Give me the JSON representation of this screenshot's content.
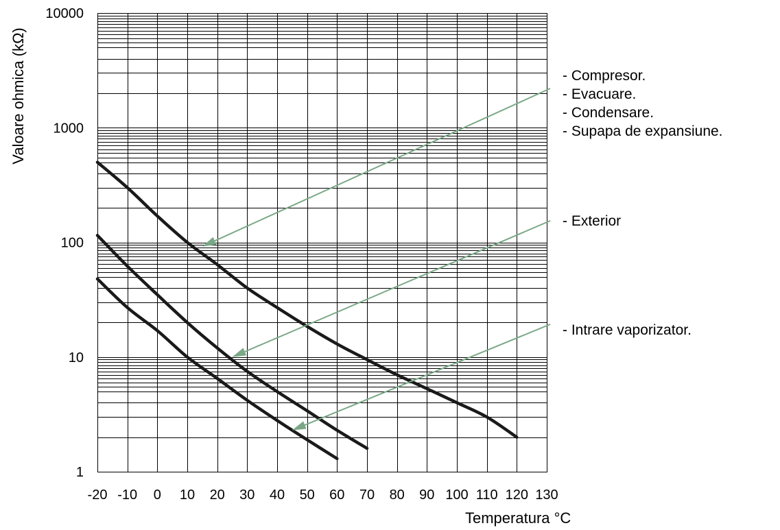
{
  "chart_data": {
    "type": "line",
    "xlabel": "Temperatura °C",
    "ylabel": "Valoare ohmica (kΩ)",
    "xlim": [
      -20,
      130
    ],
    "ylim": [
      1,
      10000
    ],
    "y_scale": "log",
    "grid": true,
    "x_ticks": [
      "-20",
      "-10",
      "0",
      "10",
      "20",
      "30",
      "40",
      "50",
      "60",
      "70",
      "80",
      "90",
      "100",
      "110",
      "120",
      "130"
    ],
    "y_ticks": [
      "1",
      "10",
      "100",
      "1000",
      "10000"
    ],
    "series": [
      {
        "key": "s1",
        "x": [
          -20,
          -10,
          0,
          10,
          20,
          30,
          40,
          50,
          60,
          70,
          80,
          90,
          100,
          110,
          120
        ],
        "y": [
          500,
          300,
          170,
          100,
          64,
          40,
          27,
          18.5,
          13,
          9.5,
          7,
          5.3,
          4,
          3,
          2
        ]
      },
      {
        "key": "s2",
        "x": [
          -20,
          -10,
          0,
          10,
          20,
          30,
          40,
          50,
          60,
          70
        ],
        "y": [
          115,
          62,
          35,
          20,
          12,
          7.5,
          5,
          3.4,
          2.3,
          1.6
        ]
      },
      {
        "key": "s3",
        "x": [
          -20,
          -10,
          0,
          10,
          20,
          30,
          40,
          50,
          60
        ],
        "y": [
          48,
          27,
          17,
          10,
          6.5,
          4.2,
          2.8,
          1.9,
          1.3
        ]
      }
    ],
    "annotations": [
      {
        "series": "s1",
        "lines": [
          "- Compresor.",
          "- Evacuare.",
          "- Condensare.",
          "- Supapa de expansiune."
        ],
        "arrow_to": [
          15,
          92
        ]
      },
      {
        "series": "s2",
        "lines": [
          "- Exterior"
        ],
        "arrow_to": [
          25,
          10
        ]
      },
      {
        "series": "s3",
        "lines": [
          "- Intrare vaporizator."
        ],
        "arrow_to": [
          45,
          2.3
        ]
      }
    ],
    "colors": {
      "curve": "#1a1a1a",
      "arrow": "#7aa886",
      "grid": "#000000"
    }
  }
}
